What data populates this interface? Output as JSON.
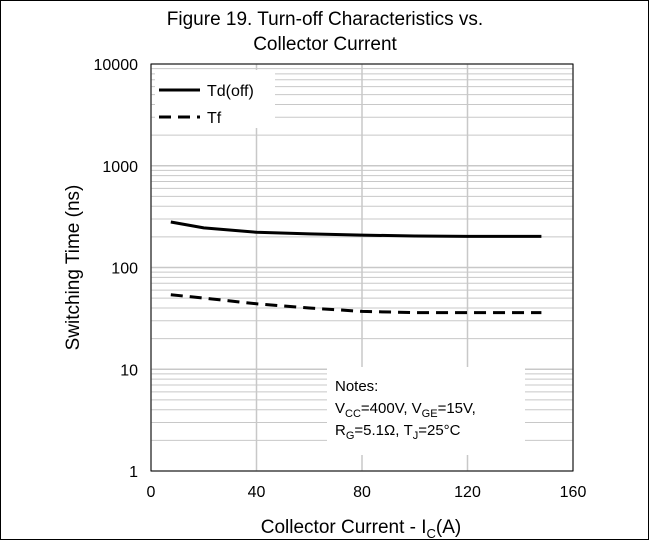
{
  "chart_data": {
    "type": "line",
    "title": [
      "Figure 19. Turn-off Characteristics vs.",
      "Collector Current"
    ],
    "xlabel": "Collector Current - I",
    "xlabel_sub": "C",
    "xlabel_tail": "(A)",
    "ylabel": "Switching Time (ns)",
    "xlim": [
      0,
      160
    ],
    "ylim": [
      1,
      10000
    ],
    "yscale": "log",
    "grid": true,
    "legend_position": "top-left",
    "x_ticks": [
      {
        "value": 0,
        "label": "0"
      },
      {
        "value": 40,
        "label": "40"
      },
      {
        "value": 80,
        "label": "80"
      },
      {
        "value": 120,
        "label": "120"
      },
      {
        "value": 160,
        "label": "160"
      }
    ],
    "y_ticks": [
      {
        "value": 1,
        "label": "1"
      },
      {
        "value": 10,
        "label": "10"
      },
      {
        "value": 100,
        "label": "100"
      },
      {
        "value": 1000,
        "label": "1000"
      },
      {
        "value": 10000,
        "label": "10000"
      }
    ],
    "series": [
      {
        "name": "Td(off)",
        "style": "solid",
        "x": [
          7.5,
          20,
          40,
          60,
          80,
          100,
          120,
          148
        ],
        "y": [
          280,
          245,
          222,
          214,
          208,
          204,
          202,
          202
        ]
      },
      {
        "name": "Tf",
        "style": "dashed",
        "x": [
          7.5,
          20,
          40,
          60,
          80,
          100,
          120,
          148
        ],
        "y": [
          54,
          50,
          44,
          40,
          37,
          36,
          36,
          36
        ]
      }
    ],
    "notes": [
      {
        "parts": [
          {
            "t": "Notes:"
          }
        ]
      },
      {
        "parts": [
          {
            "t": "V"
          },
          {
            "t": "CC",
            "sub": true
          },
          {
            "t": "=400V,  V"
          },
          {
            "t": "GE",
            "sub": true
          },
          {
            "t": "=15V,"
          }
        ]
      },
      {
        "parts": [
          {
            "t": "R"
          },
          {
            "t": "G",
            "sub": true
          },
          {
            "t": "=5.1Ω, T"
          },
          {
            "t": "J",
            "sub": true
          },
          {
            "t": "=25°C"
          }
        ]
      }
    ],
    "colors": {
      "line": "#000000",
      "grid_major": "#c8c8c8",
      "grid_minor": "#c8c8c8",
      "frame": "#000000"
    }
  }
}
